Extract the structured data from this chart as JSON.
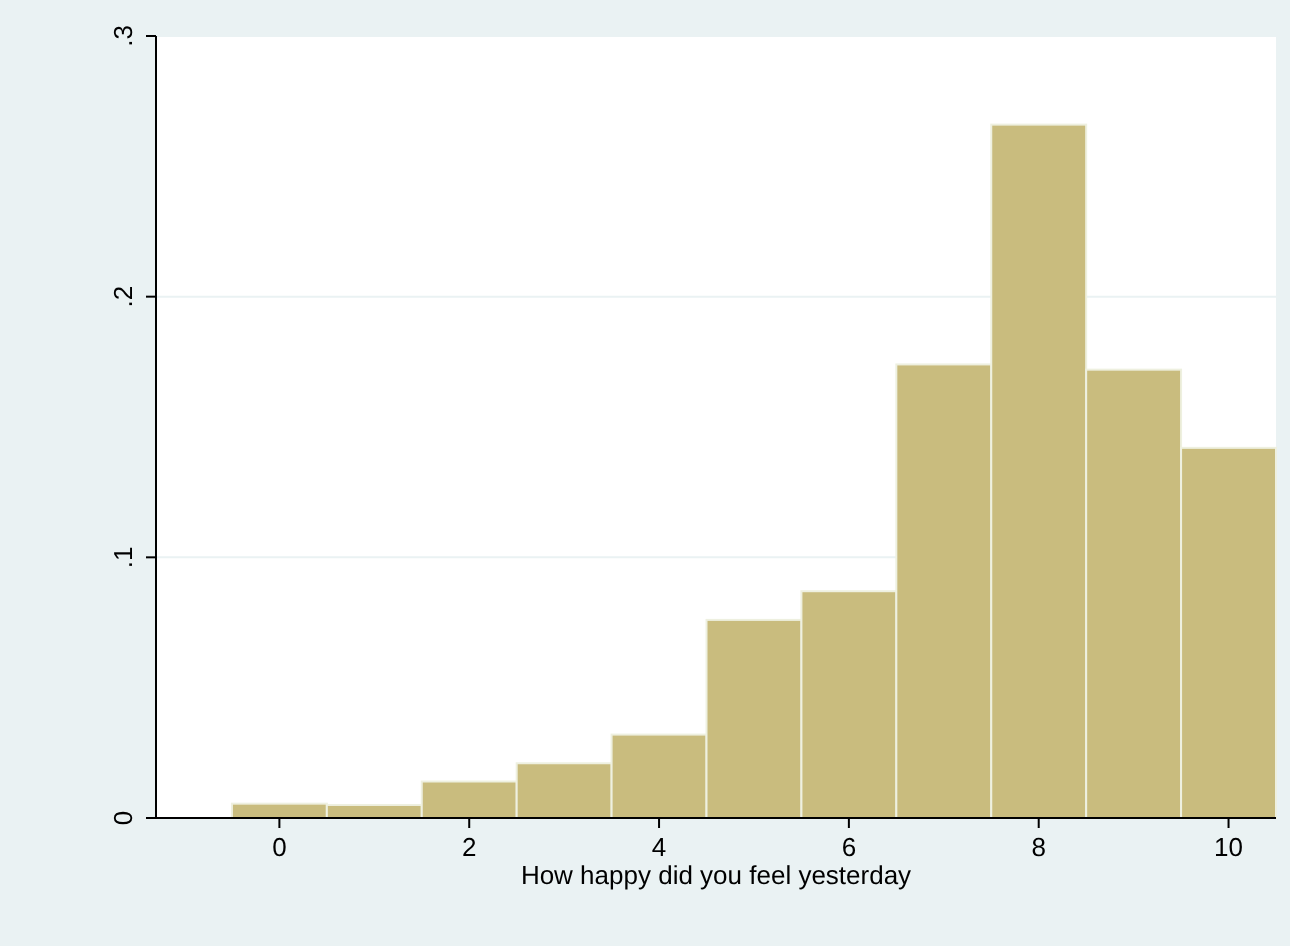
{
  "chart_data": {
    "type": "histogram",
    "xlabel": "How happy did you feel yesterday",
    "bins": [
      -0.5,
      0.5,
      1.5,
      2.5,
      3.5,
      4.5,
      5.5,
      6.5,
      7.5,
      8.5,
      9.5,
      10.5
    ],
    "values": [
      0.0055,
      0.005,
      0.014,
      0.021,
      0.032,
      0.076,
      0.087,
      0.174,
      0.266,
      0.172,
      0.142
    ],
    "color": "#c9bc7e",
    "xlim": [
      -1.3,
      10.5
    ],
    "xticks": [
      0,
      2,
      4,
      6,
      8,
      10
    ],
    "ylim": [
      0,
      0.3
    ],
    "yticks": [
      0,
      {
        "value": 0.1,
        "label": ".1"
      },
      {
        "value": 0.2,
        "label": ".2"
      },
      {
        "value": 0.3,
        "label": ".3"
      }
    ],
    "grid": "y"
  }
}
